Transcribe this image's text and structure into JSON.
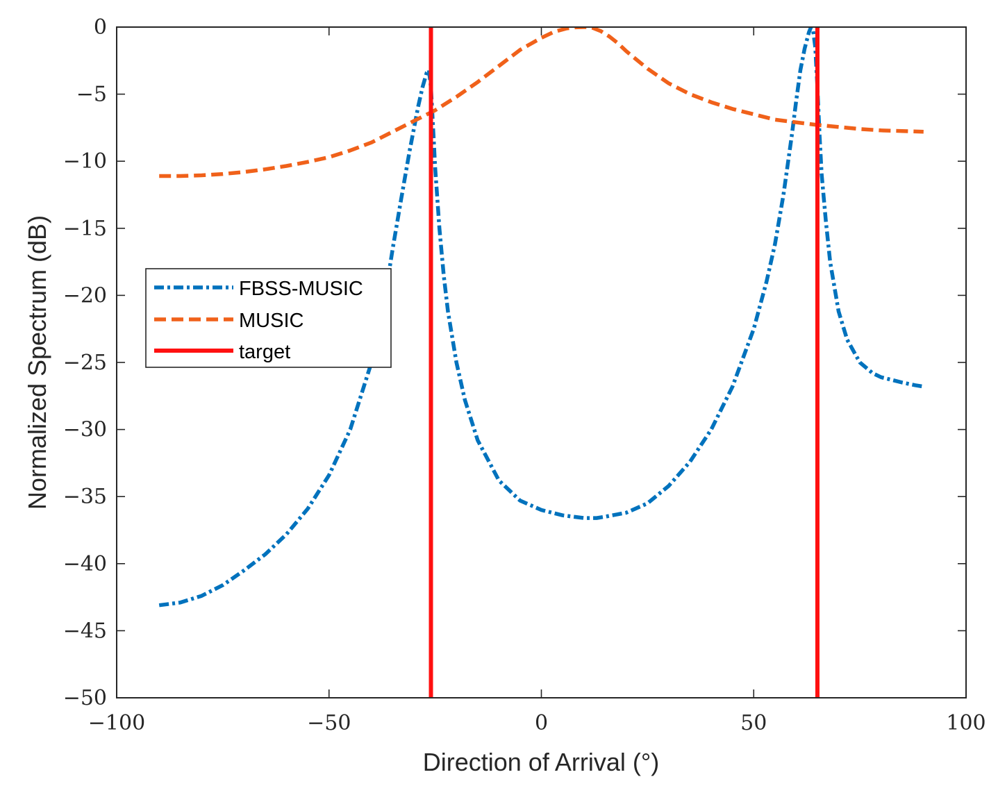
{
  "chart_data": {
    "type": "line",
    "title": "",
    "xlabel": "Direction of Arrival (°)",
    "ylabel": "Normalized Spectrum (dB)",
    "xlim": [
      -100,
      100
    ],
    "ylim": [
      -50,
      0
    ],
    "xticks": [
      -100,
      -50,
      0,
      50,
      100
    ],
    "xtick_labels": [
      "−100",
      "−50",
      "0",
      "50",
      "100"
    ],
    "yticks": [
      0,
      -5,
      -10,
      -15,
      -20,
      -25,
      -30,
      -35,
      -40,
      -45,
      -50
    ],
    "ytick_labels": [
      "0",
      "−5",
      "−10",
      "−15",
      "−20",
      "−25",
      "−30",
      "−35",
      "−40",
      "−45",
      "−50"
    ],
    "grid": false,
    "legend_position": "middle-left",
    "series": [
      {
        "name": "FBSS-MUSIC",
        "color": "#0072BD",
        "style": "dash-dot",
        "x": [
          -90,
          -85,
          -80,
          -75,
          -70,
          -65,
          -60,
          -55,
          -50,
          -45,
          -40,
          -37,
          -35,
          -33,
          -31,
          -29,
          -28,
          -27,
          -26.5,
          -26,
          -25.5,
          -25,
          -24,
          -23,
          -22,
          -20,
          -18,
          -15,
          -10,
          -5,
          0,
          5,
          10,
          13,
          15,
          20,
          25,
          30,
          35,
          40,
          45,
          50,
          53,
          55,
          57,
          59,
          60,
          61,
          62,
          63,
          63.5,
          64,
          64.5,
          65,
          65.5,
          66,
          67,
          68,
          70,
          72,
          75,
          78,
          80,
          85,
          88,
          90
        ],
        "y": [
          -43.1,
          -42.9,
          -42.4,
          -41.6,
          -40.5,
          -39.3,
          -37.8,
          -35.9,
          -33.4,
          -30,
          -25,
          -20.5,
          -16.5,
          -12.8,
          -9.2,
          -5.9,
          -4.5,
          -3.4,
          -3.2,
          -4.5,
          -7.5,
          -10.5,
          -15,
          -18.5,
          -21.2,
          -25,
          -27.8,
          -30.8,
          -33.8,
          -35.3,
          -36,
          -36.4,
          -36.6,
          -36.6,
          -36.5,
          -36.2,
          -35.5,
          -34.2,
          -32.4,
          -30,
          -26.8,
          -22.5,
          -19,
          -16.2,
          -12.5,
          -8,
          -5.5,
          -3.2,
          -1.6,
          -0.4,
          0,
          -0.3,
          -1.5,
          -4.5,
          -8,
          -11,
          -14.5,
          -17.5,
          -21.2,
          -23.3,
          -25,
          -25.8,
          -26.1,
          -26.5,
          -26.7,
          -26.8
        ]
      },
      {
        "name": "MUSIC",
        "color": "#F0611A",
        "style": "dashed",
        "x": [
          -90,
          -85,
          -80,
          -75,
          -70,
          -65,
          -60,
          -55,
          -50,
          -45,
          -40,
          -35,
          -30,
          -25,
          -20,
          -15,
          -10,
          -5,
          0,
          3,
          6,
          8,
          10,
          11,
          12,
          14,
          16,
          18,
          20,
          25,
          30,
          35,
          40,
          45,
          50,
          55,
          60,
          65,
          70,
          75,
          80,
          85,
          90
        ],
        "y": [
          -11.1,
          -11.1,
          -11.05,
          -10.95,
          -10.8,
          -10.6,
          -10.35,
          -10.05,
          -9.7,
          -9.2,
          -8.6,
          -7.8,
          -7,
          -6.2,
          -5.2,
          -4.1,
          -2.9,
          -1.7,
          -0.8,
          -0.35,
          -0.1,
          -0.02,
          0,
          0,
          -0.05,
          -0.3,
          -0.7,
          -1.2,
          -1.8,
          -3.1,
          -4.2,
          -5,
          -5.6,
          -6.1,
          -6.5,
          -6.9,
          -7.1,
          -7.3,
          -7.45,
          -7.6,
          -7.7,
          -7.75,
          -7.8
        ]
      },
      {
        "name": "target",
        "color": "#FF1010",
        "style": "solid",
        "x": [
          -26,
          65
        ],
        "y": [
          -50,
          0
        ]
      }
    ]
  }
}
